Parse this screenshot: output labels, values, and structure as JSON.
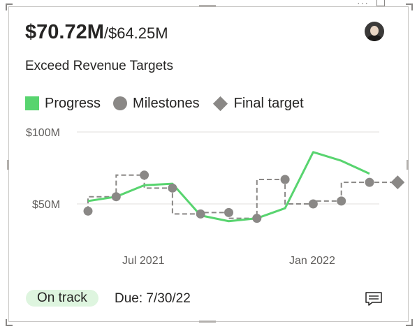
{
  "card": {
    "value": "$70.72M",
    "target": "/$64.25M",
    "title": "Exceed Revenue Targets",
    "status": "On track",
    "due": "Due: 7/30/22",
    "colors": {
      "progress": "#58d46f",
      "milestone": "#8a8886",
      "status_bg": "#def5df"
    }
  },
  "legend": {
    "progress": "Progress",
    "milestones": "Milestones",
    "final_target": "Final target"
  },
  "icons": [
    "avatar",
    "comment-icon",
    "more-options-icon",
    "focus-mode-icon"
  ],
  "chart_data": {
    "type": "line",
    "y_ticks": [
      "$100M",
      "$50M"
    ],
    "x_ticks": [
      "Jul 2021",
      "Jan 2022"
    ],
    "ylim": [
      0,
      100
    ],
    "grid": true,
    "legend_position": "top-left",
    "series": [
      {
        "name": "Progress",
        "x": [
          "2021-04",
          "2021-05",
          "2021-06",
          "2021-07",
          "2021-08",
          "2021-09",
          "2021-10",
          "2021-11",
          "2021-12",
          "2022-01",
          "2022-02"
        ],
        "values": [
          52,
          55,
          63,
          64,
          42,
          38,
          40,
          47,
          86,
          80,
          71
        ]
      },
      {
        "name": "Milestones",
        "x": [
          "2021-04",
          "2021-05",
          "2021-06",
          "2021-07",
          "2021-08",
          "2021-09",
          "2021-10",
          "2021-11",
          "2021-12",
          "2022-01",
          "2022-02"
        ],
        "values": [
          45,
          55,
          70,
          61,
          43,
          44,
          40,
          67,
          50,
          52,
          65
        ]
      },
      {
        "name": "Final target",
        "x": [
          "2022-03"
        ],
        "values": [
          65
        ]
      }
    ]
  }
}
